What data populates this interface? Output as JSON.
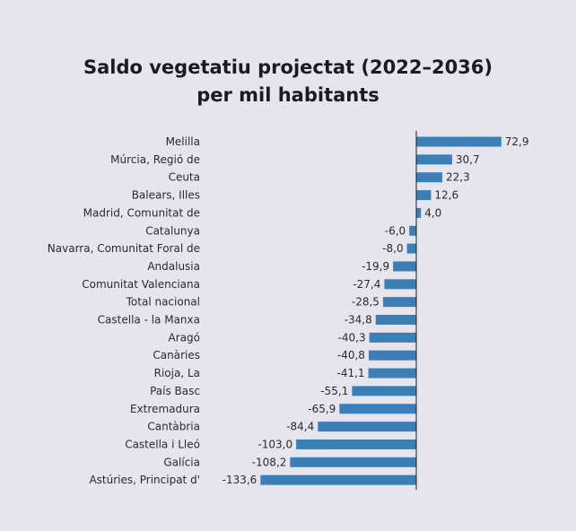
{
  "chart_data": {
    "type": "bar",
    "orientation": "horizontal",
    "title": "Saldo vegetatiu projectat (2022–2036)",
    "subtitle": "per mil habitants",
    "xlabel": "",
    "ylabel": "",
    "grid": false,
    "bar_color": "#3b7fb6",
    "categories": [
      "Melilla",
      "Múrcia, Regió de",
      "Ceuta",
      "Balears, Illes",
      "Madrid, Comunitat de",
      "Catalunya",
      "Navarra, Comunitat Foral de",
      "Andalusia",
      "Comunitat Valenciana",
      "Total nacional",
      "Castella - la Manxa",
      "Aragó",
      "Canàries",
      "Rioja, La",
      "País Basc",
      "Extremadura",
      "Cantàbria",
      "Castella i Lleó",
      "Galícia",
      "Astúries, Principat d'"
    ],
    "values": [
      72.9,
      30.7,
      22.3,
      12.6,
      4.0,
      -6.0,
      -8.0,
      -19.9,
      -27.4,
      -28.5,
      -34.8,
      -40.3,
      -40.8,
      -41.1,
      -55.1,
      -65.9,
      -84.4,
      -103.0,
      -108.2,
      -133.6
    ],
    "value_labels": [
      "72,9",
      "30,7",
      "22,3",
      "12,6",
      "4,0",
      "-6,0",
      "-8,0",
      "-19,9",
      "-27,4",
      "-28,5",
      "-34,8",
      "-40,3",
      "-40,8",
      "-41,1",
      "-55,1",
      "-65,9",
      "-84,4",
      "-103,0",
      "-108,2",
      "-133,6"
    ]
  }
}
